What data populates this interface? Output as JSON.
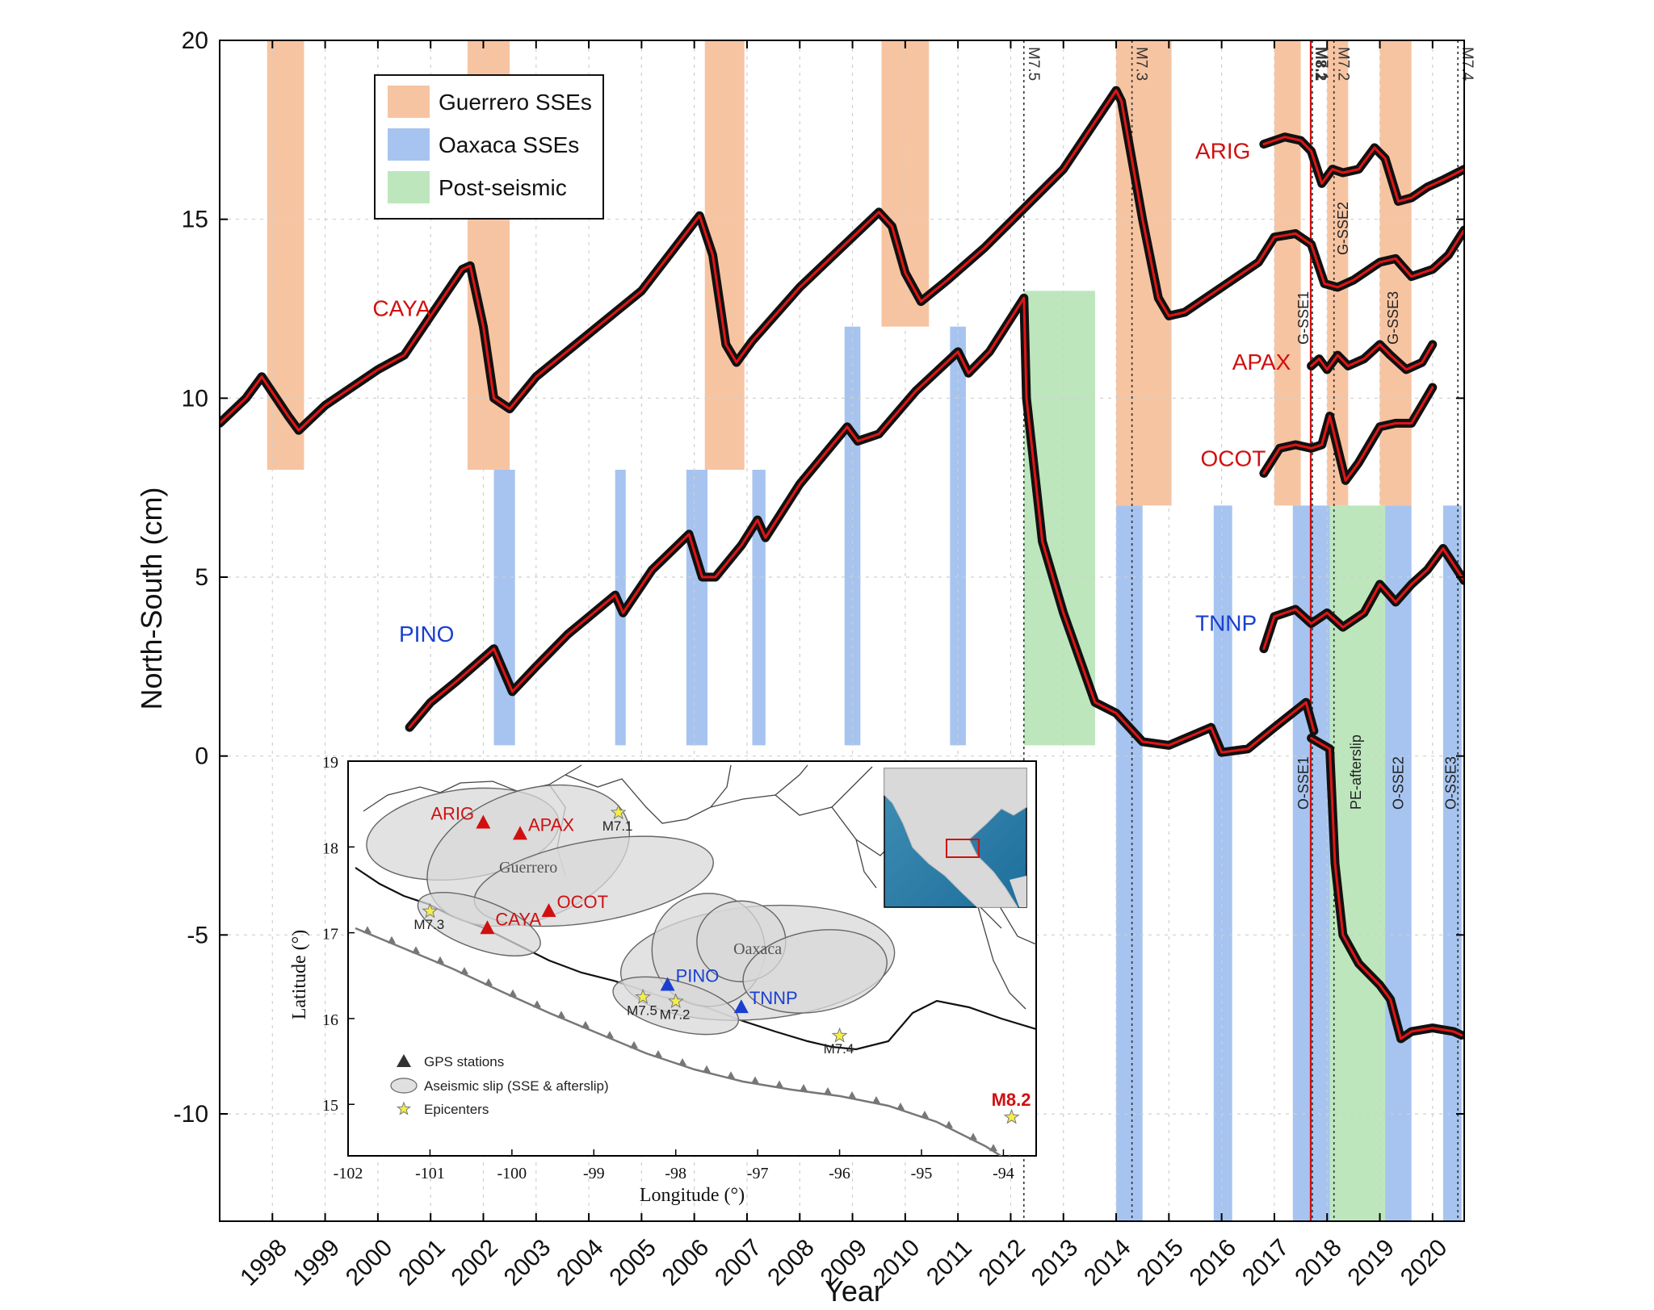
{
  "chart_data": {
    "type": "line",
    "xlabel": "Year",
    "ylabel": "North-South (cm)",
    "xlim": [
      1997,
      2020.6
    ],
    "ylim": [
      -13,
      20
    ],
    "x_ticks": [
      "1998",
      "1999",
      "2000",
      "2001",
      "2002",
      "2003",
      "2004",
      "2005",
      "2006",
      "2007",
      "2008",
      "2009",
      "2010",
      "2011",
      "2012",
      "2013",
      "2014",
      "2015",
      "2016",
      "2017",
      "2018",
      "2019",
      "2020"
    ],
    "y_ticks": [
      20,
      15,
      10,
      5,
      0,
      -5,
      -10
    ],
    "grid": true,
    "legend": {
      "placement": "top-left",
      "entries": [
        {
          "label": "Guerrero SSEs",
          "color": "#f7c4a2"
        },
        {
          "label": "Oaxaca SSEs",
          "color": "#a6c4ef"
        },
        {
          "label": "Post-seismic",
          "color": "#bde6bd"
        }
      ]
    },
    "guerrero_sse": [
      {
        "x0": 1997.9,
        "x1": 1998.6,
        "y0": 8,
        "y1": 20
      },
      {
        "x0": 2001.7,
        "x1": 2002.5,
        "y0": 8,
        "y1": 20
      },
      {
        "x0": 2006.2,
        "x1": 2006.95,
        "y0": 8,
        "y1": 20
      },
      {
        "x0": 2009.55,
        "x1": 2010.45,
        "y0": 12,
        "y1": 20
      },
      {
        "x0": 2014.0,
        "x1": 2015.05,
        "y0": 7,
        "y1": 20
      },
      {
        "x0": 2017.0,
        "x1": 2017.5,
        "y0": 7,
        "y1": 20
      },
      {
        "x0": 2018.0,
        "x1": 2018.4,
        "y0": 7,
        "y1": 20
      },
      {
        "x0": 2019.0,
        "x1": 2019.6,
        "y0": 7,
        "y1": 20
      }
    ],
    "oaxaca_sse": [
      {
        "x0": 2002.2,
        "x1": 2002.6,
        "y0": 0.3,
        "y1": 8
      },
      {
        "x0": 2004.5,
        "x1": 2004.7,
        "y0": 0.3,
        "y1": 8
      },
      {
        "x0": 2005.85,
        "x1": 2006.25,
        "y0": 0.3,
        "y1": 8
      },
      {
        "x0": 2007.1,
        "x1": 2007.35,
        "y0": 0.3,
        "y1": 8
      },
      {
        "x0": 2008.85,
        "x1": 2009.15,
        "y0": 0.3,
        "y1": 12
      },
      {
        "x0": 2010.85,
        "x1": 2011.15,
        "y0": 0.3,
        "y1": 12
      },
      {
        "x0": 2014.0,
        "x1": 2014.5,
        "y0": -13,
        "y1": 7
      },
      {
        "x0": 2015.85,
        "x1": 2016.2,
        "y0": -13,
        "y1": 7
      },
      {
        "x0": 2017.35,
        "x1": 2017.7,
        "y0": -13,
        "y1": 7
      },
      {
        "x0": 2017.7,
        "x1": 2018.05,
        "y0": -13,
        "y1": 7
      },
      {
        "x0": 2019.1,
        "x1": 2019.6,
        "y0": -13,
        "y1": 7
      },
      {
        "x0": 2020.2,
        "x1": 2020.55,
        "y0": -13,
        "y1": 7
      }
    ],
    "post_seismic": [
      {
        "x0": 2012.25,
        "x1": 2013.6,
        "y0": 0.3,
        "y1": 13
      },
      {
        "x0": 2018.05,
        "x1": 2019.1,
        "y0": -13,
        "y1": 7
      }
    ],
    "earthquakes": [
      {
        "label": "M7.5",
        "x": 2012.25,
        "color": "#333333"
      },
      {
        "label": "M7.3",
        "x": 2014.3,
        "color": "#333333"
      },
      {
        "label": "M8.2",
        "x": 2017.69,
        "color": "#d01010"
      },
      {
        "label": "M7.1",
        "x": 2017.72,
        "color": "#333333"
      },
      {
        "label": "M7.2",
        "x": 2018.13,
        "color": "#333333"
      },
      {
        "label": "M7.4",
        "x": 2020.48,
        "color": "#333333"
      }
    ],
    "event_labels": [
      {
        "label": "G-SSE1",
        "x": 2017.55,
        "y": 11.5
      },
      {
        "label": "G-SSE2",
        "x": 2018.3,
        "y": 14
      },
      {
        "label": "G-SSE3",
        "x": 2019.25,
        "y": 11.5
      },
      {
        "label": "O-SSE1",
        "x": 2017.55,
        "y": -1.5
      },
      {
        "label": "PE-afterslip",
        "x": 2018.55,
        "y": -1.5
      },
      {
        "label": "O-SSE2",
        "x": 2019.35,
        "y": -1.5
      },
      {
        "label": "O-SSE3",
        "x": 2020.35,
        "y": -1.5
      }
    ],
    "series": [
      {
        "name": "CAYA",
        "color": "#d01010",
        "x": [
          1997,
          1997.5,
          1997.8,
          1998.3,
          1998.5,
          1999,
          2000,
          2000.5,
          2001.0,
          2001.6,
          2001.75,
          2002.0,
          2002.2,
          2002.5,
          2003,
          2004,
          2005,
          2006.1,
          2006.35,
          2006.6,
          2006.8,
          2007.1,
          2008,
          2009.5,
          2009.75,
          2010.0,
          2010.3,
          2010.8,
          2011.5,
          2012.25,
          2013.0,
          2014.0,
          2014.1,
          2014.5,
          2014.8,
          2015.0,
          2015.3,
          2016,
          2016.7,
          2017.0,
          2017.4,
          2017.7,
          2017.95,
          2018.2,
          2018.5,
          2019.0,
          2019.3,
          2019.6,
          2020.0,
          2020.3,
          2020.6
        ],
        "y": [
          9.3,
          10,
          10.6,
          9.5,
          9.1,
          9.8,
          10.8,
          11.2,
          12.3,
          13.6,
          13.7,
          12,
          10,
          9.7,
          10.6,
          11.8,
          13.0,
          15.1,
          14,
          11.5,
          11,
          11.6,
          13.1,
          15.2,
          14.8,
          13.5,
          12.7,
          13.3,
          14.2,
          15.3,
          16.4,
          18.6,
          18.3,
          15,
          12.8,
          12.3,
          12.4,
          13.1,
          13.8,
          14.5,
          14.6,
          14.3,
          13.2,
          13.1,
          13.3,
          13.8,
          13.9,
          13.4,
          13.6,
          14,
          14.7
        ]
      },
      {
        "name": "PINO",
        "color": "#1a3fd0",
        "x": [
          2000.6,
          2001.0,
          2001.5,
          2002.2,
          2002.55,
          2003.0,
          2003.6,
          2004.5,
          2004.65,
          2005.2,
          2005.9,
          2006.15,
          2006.4,
          2006.9,
          2007.2,
          2007.35,
          2008.0,
          2008.9,
          2009.1,
          2009.5,
          2010.2,
          2011.0,
          2011.2,
          2011.6,
          2012.25,
          2012.3,
          2012.6,
          2013.0,
          2013.6,
          2014.0,
          2014.5,
          2015.0,
          2015.8,
          2016.0,
          2016.5,
          2017.0,
          2017.6,
          2017.75
        ],
        "y": [
          0.8,
          1.5,
          2.1,
          3,
          1.8,
          2.5,
          3.4,
          4.5,
          4,
          5.2,
          6.2,
          5.0,
          5,
          5.9,
          6.6,
          6.1,
          7.6,
          9.2,
          8.8,
          9,
          10.2,
          11.3,
          10.7,
          11.3,
          12.8,
          10,
          6,
          4,
          1.5,
          1.2,
          0.4,
          0.3,
          0.8,
          0.1,
          0.2,
          0.8,
          1.5,
          0.7
        ]
      },
      {
        "name": "ARIG",
        "color": "#d01010",
        "x": [
          2016.8,
          2017.2,
          2017.5,
          2017.7,
          2017.9,
          2018.1,
          2018.3,
          2018.6,
          2018.9,
          2019.1,
          2019.35,
          2019.6,
          2019.9,
          2020.2,
          2020.6
        ],
        "y": [
          17.1,
          17.3,
          17.2,
          16.9,
          16.0,
          16.4,
          16.3,
          16.4,
          17.0,
          16.7,
          15.5,
          15.6,
          15.9,
          16.1,
          16.4
        ]
      },
      {
        "name": "APAX",
        "color": "#d01010",
        "x": [
          2017.7,
          2017.85,
          2018.0,
          2018.2,
          2018.4,
          2018.7,
          2019.0,
          2019.2,
          2019.5,
          2019.8,
          2020.0
        ],
        "y": [
          10.9,
          11.1,
          10.8,
          11.2,
          10.9,
          11.1,
          11.5,
          11.2,
          10.8,
          11.0,
          11.5
        ]
      },
      {
        "name": "OCOT",
        "color": "#d01010",
        "x": [
          2016.8,
          2017.1,
          2017.4,
          2017.7,
          2017.9,
          2018.05,
          2018.35,
          2018.6,
          2019.0,
          2019.3,
          2019.6,
          2020.0
        ],
        "y": [
          7.9,
          8.6,
          8.7,
          8.6,
          8.7,
          9.5,
          7.7,
          8.2,
          9.2,
          9.3,
          9.3,
          10.3
        ]
      },
      {
        "name": "TNNP",
        "color": "#1a3fd0",
        "x": [
          2016.8,
          2017.0,
          2017.4,
          2017.7,
          2018.0,
          2018.3,
          2018.7,
          2019.0,
          2019.3,
          2019.6,
          2019.9,
          2020.2,
          2020.6
        ],
        "y": [
          3.0,
          3.9,
          4.1,
          3.7,
          4.0,
          3.6,
          4.0,
          4.8,
          4.3,
          4.8,
          5.2,
          5.8,
          4.9
        ]
      },
      {
        "name": "",
        "color": "#d01010",
        "x": [
          2017.7,
          2018.05,
          2018.15,
          2018.3,
          2018.6,
          2019.0,
          2019.2,
          2019.4,
          2019.6,
          2020.0,
          2020.4,
          2020.55
        ],
        "y": [
          0.5,
          0.2,
          -3,
          -5,
          -5.8,
          -6.4,
          -6.8,
          -7.9,
          -7.7,
          -7.6,
          -7.7,
          -7.8
        ]
      }
    ],
    "station_labels": [
      {
        "name": "CAYA",
        "x": 1999.9,
        "y": 12.3,
        "color": "#d01010"
      },
      {
        "name": "PINO",
        "x": 2000.4,
        "y": 3.2,
        "color": "#1a3fd0"
      },
      {
        "name": "ARIG",
        "x": 2015.5,
        "y": 16.7,
        "color": "#d01010"
      },
      {
        "name": "APAX",
        "x": 2016.2,
        "y": 10.8,
        "color": "#d01010"
      },
      {
        "name": "OCOT",
        "x": 2015.6,
        "y": 8.1,
        "color": "#d01010"
      },
      {
        "name": "TNNP",
        "x": 2015.5,
        "y": 3.5,
        "color": "#1a3fd0"
      }
    ],
    "inset": {
      "xlabel": "Longitude (°)",
      "ylabel": "Latitude (°)",
      "xlim": [
        -102,
        -93.6
      ],
      "ylim": [
        14.4,
        19
      ],
      "x_ticks": [
        "-102",
        "-101",
        "-100",
        "-99",
        "-98",
        "-97",
        "-96",
        "-95",
        "-94"
      ],
      "y_ticks": [
        "19",
        "18",
        "17",
        "16",
        "15"
      ],
      "region_labels": [
        {
          "label": "Guerrero",
          "lon": -99.8,
          "lat": 17.7
        },
        {
          "label": "Oaxaca",
          "lon": -97.0,
          "lat": 16.75
        }
      ],
      "stations": [
        {
          "name": "ARIG",
          "lon": -100.35,
          "lat": 18.28,
          "color": "#d01010"
        },
        {
          "name": "APAX",
          "lon": -99.9,
          "lat": 18.15,
          "color": "#d01010"
        },
        {
          "name": "OCOT",
          "lon": -99.55,
          "lat": 17.25,
          "color": "#d01010"
        },
        {
          "name": "CAYA",
          "lon": -100.3,
          "lat": 17.05,
          "color": "#d01010"
        },
        {
          "name": "PINO",
          "lon": -98.1,
          "lat": 16.39,
          "color": "#1a3fd0"
        },
        {
          "name": "TNNP",
          "lon": -97.2,
          "lat": 16.13,
          "color": "#1a3fd0"
        }
      ],
      "epicenters": [
        {
          "label": "M7.1",
          "lon": -98.7,
          "lat": 18.4,
          "color": "#333333"
        },
        {
          "label": "M7.3",
          "lon": -101.0,
          "lat": 17.25,
          "color": "#333333"
        },
        {
          "label": "M7.5",
          "lon": -98.4,
          "lat": 16.25,
          "color": "#333333"
        },
        {
          "label": "M7.2",
          "lon": -98.0,
          "lat": 16.2,
          "color": "#333333"
        },
        {
          "label": "M7.4",
          "lon": -96.0,
          "lat": 15.8,
          "color": "#333333"
        },
        {
          "label": "M8.2",
          "lon": -93.9,
          "lat": 14.85,
          "color": "#d01010"
        }
      ],
      "legend": [
        {
          "label": "GPS stations"
        },
        {
          "label": "Aseismic slip (SSE & afterslip)"
        },
        {
          "label": "Epicenters"
        }
      ]
    }
  }
}
